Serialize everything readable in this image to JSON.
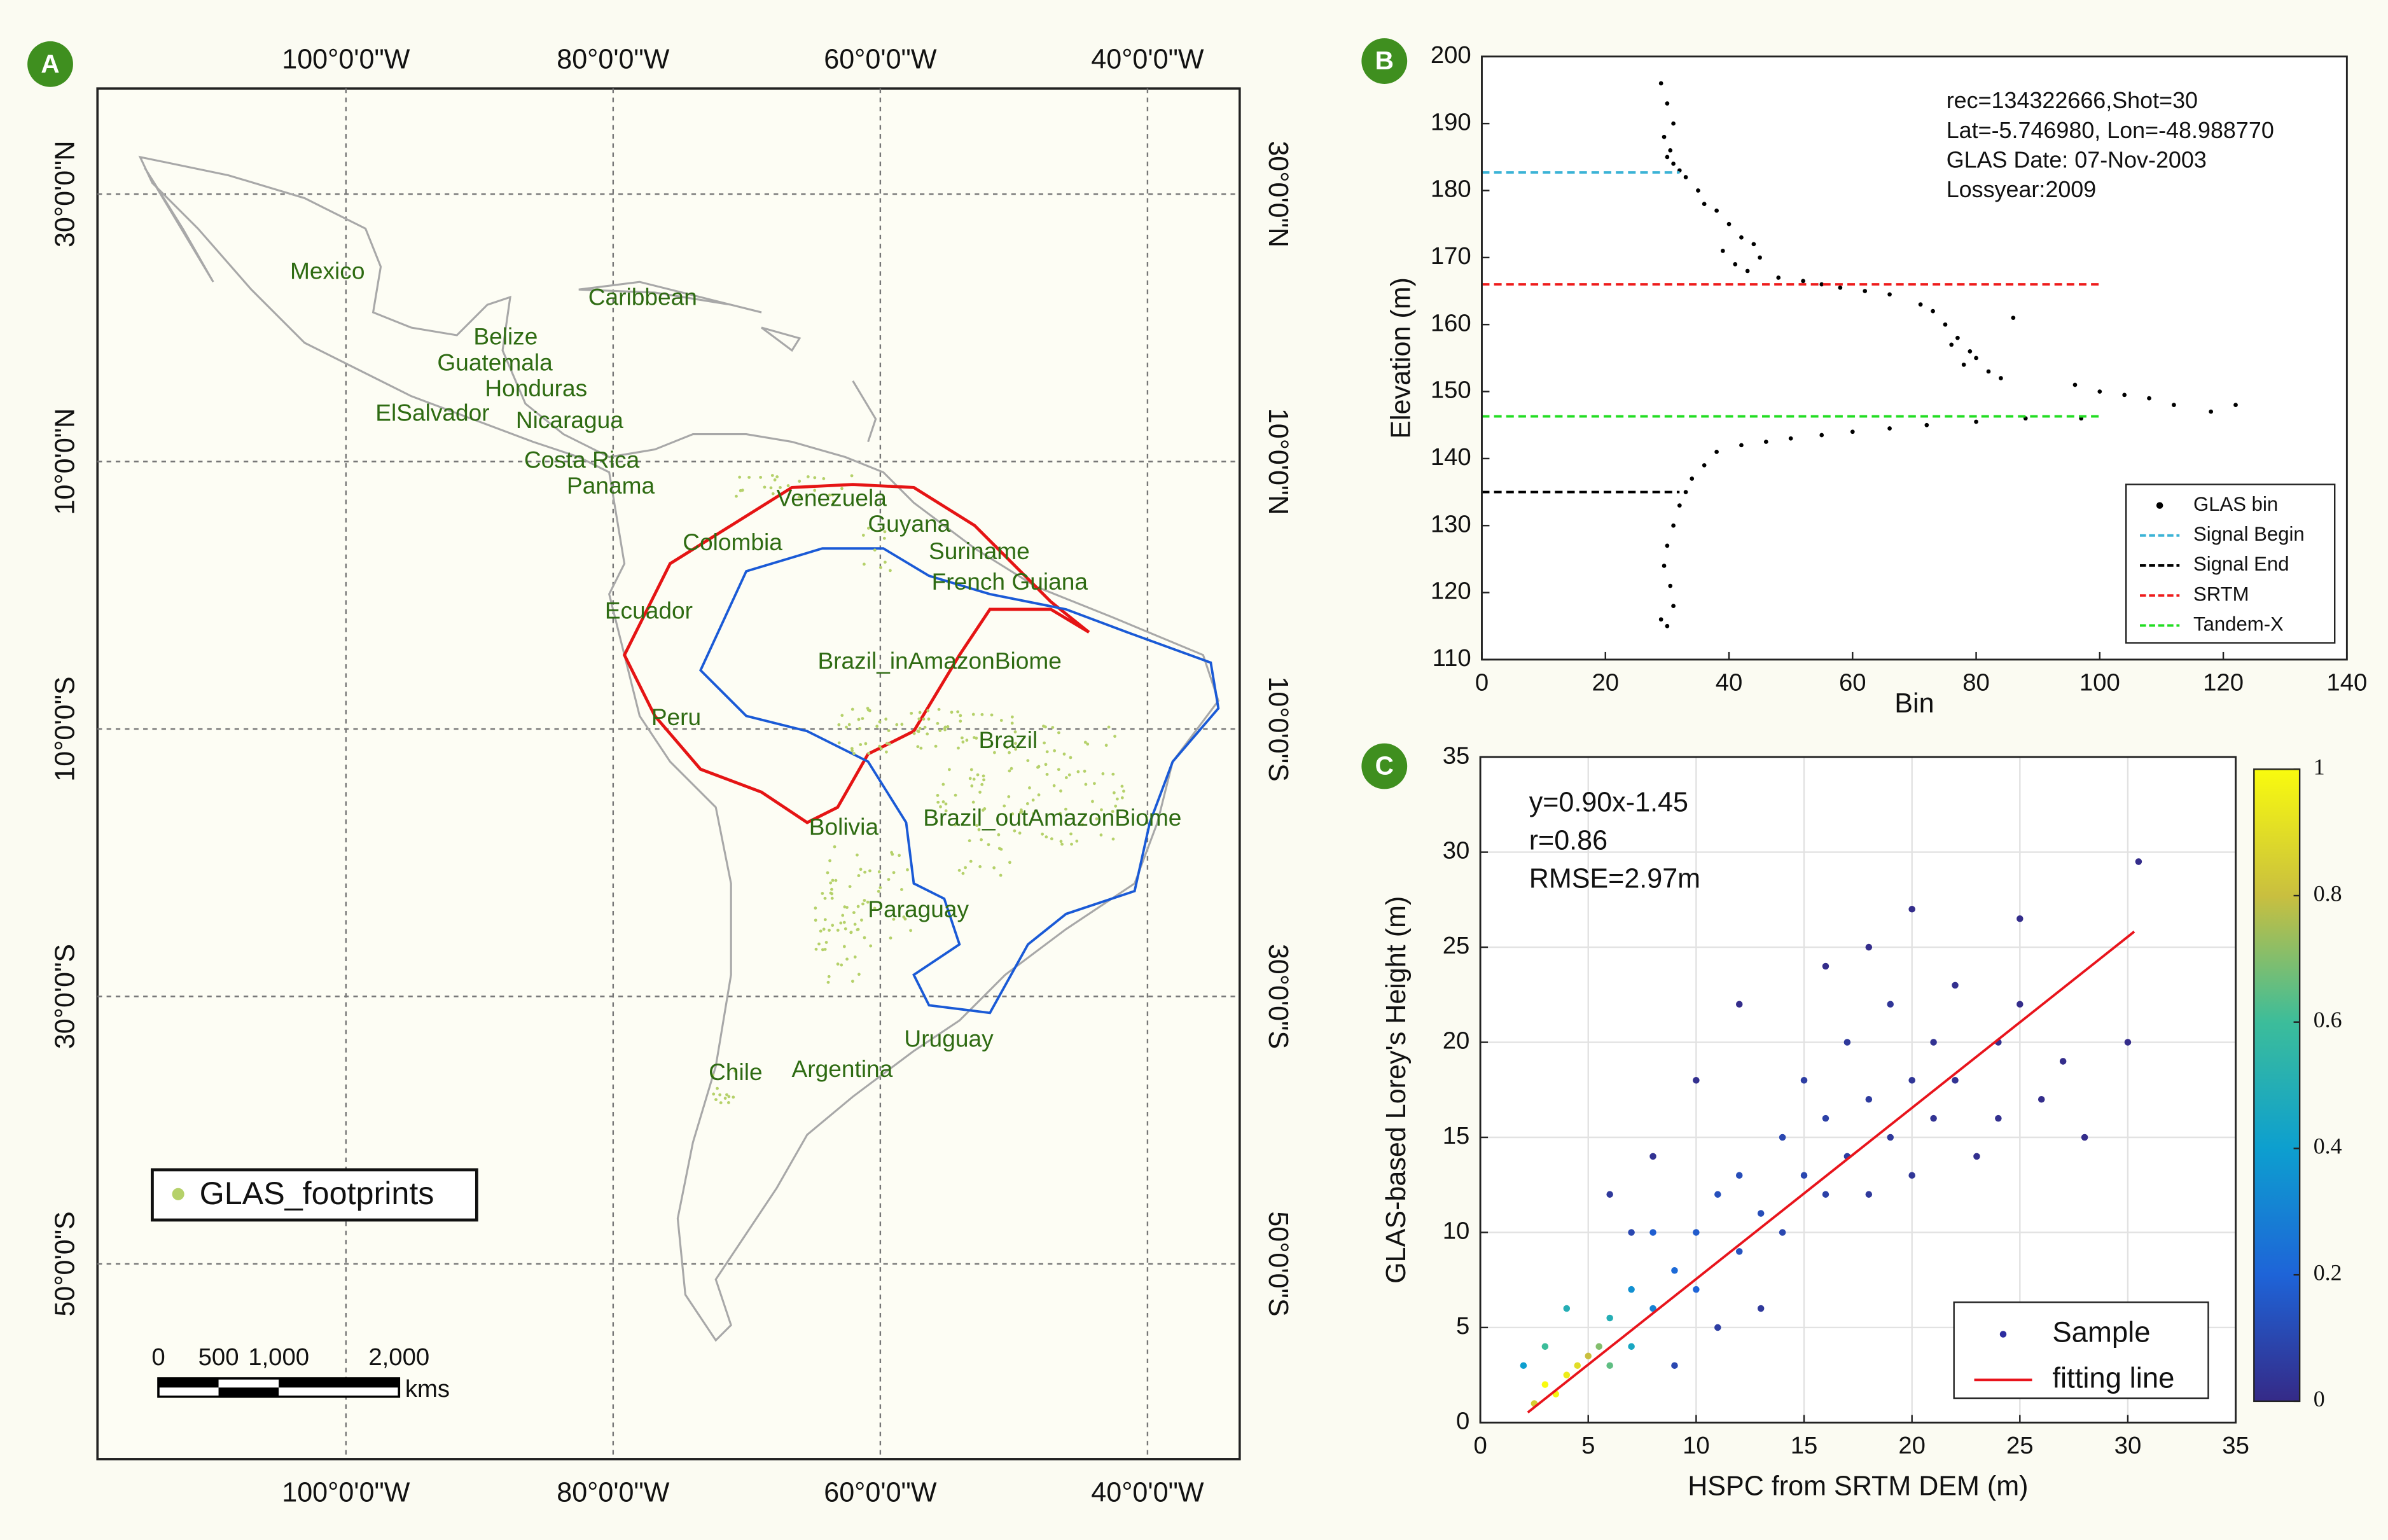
{
  "map": {
    "panel_label": "A",
    "xlim": [
      -118.6,
      -33.1
    ],
    "ylim": [
      -64.6,
      37.9
    ],
    "xticks": [
      {
        "value": -100,
        "label": "100°0'0\"W"
      },
      {
        "value": -80,
        "label": "80°0'0\"W"
      },
      {
        "value": -60,
        "label": "60°0'0\"W"
      },
      {
        "value": -40,
        "label": "40°0'0\"W"
      }
    ],
    "yticks": [
      {
        "value": 30,
        "label": "30°0'0\"N"
      },
      {
        "value": 10,
        "label": "10°0'0\"N"
      },
      {
        "value": -10,
        "label": "10°0'0\"S"
      },
      {
        "value": -30,
        "label": "30°0'0\"S"
      },
      {
        "value": -50,
        "label": "50°0'0\"S"
      }
    ],
    "labels": [
      "Mexico",
      "Caribbean",
      "Belize",
      "Guatemala",
      "Honduras",
      "ElSalvador",
      "Nicaragua",
      "Costa Rica",
      "Panama",
      "Venezuela",
      "Colombia",
      "Guyana",
      "Suriname",
      "French Guiana",
      "Ecuador",
      "Brazil_inAmazonBiome",
      "Peru",
      "Brazil",
      "Bolivia",
      "Brazil_outAmazonBiome",
      "Paraguay",
      "Uruguay",
      "Chile",
      "Argentina"
    ],
    "legend": "GLAS_footprints",
    "scale_bar": {
      "ticks": [
        {
          "value": 0,
          "label": "0"
        },
        {
          "value": 500,
          "label": "500"
        },
        {
          "value": 1000,
          "label": "1,000"
        },
        {
          "value": 2000,
          "label": "2,000"
        }
      ],
      "unit": "kms"
    }
  },
  "chart_data": [
    {
      "type": "scatter",
      "panel_label": "B",
      "annotations": [
        "rec=134322666,Shot=30",
        "Lat=-5.746980, Lon=-48.988770",
        "GLAS Date: 07-Nov-2003",
        "Lossyear:2009"
      ],
      "x_label": "Bin",
      "y_label": "Elevation (m)",
      "xlim": [
        0,
        140
      ],
      "ylim": [
        110,
        200
      ],
      "xticks": [
        0,
        20,
        40,
        60,
        80,
        100,
        120,
        140
      ],
      "yticks": [
        110,
        120,
        130,
        140,
        150,
        160,
        170,
        180,
        190,
        200
      ],
      "legend": "lower right",
      "series": [
        {
          "name": "GLAS bin",
          "color": "#000000",
          "style": "dots",
          "x": [
            29,
            30,
            31,
            29.5,
            30.5,
            31,
            32,
            30,
            33,
            35,
            36,
            38,
            40,
            42,
            44,
            39,
            41,
            45,
            43,
            48,
            52,
            55,
            58,
            62,
            66,
            71,
            73,
            75,
            77,
            79,
            80,
            82,
            84,
            86,
            76,
            78,
            96,
            100,
            104,
            108,
            112,
            118,
            122,
            97,
            88,
            80,
            72,
            66,
            60,
            55,
            50,
            46,
            42,
            38,
            36,
            34,
            33,
            32,
            31,
            30,
            29.5,
            30.5,
            31,
            29,
            30
          ],
          "y": [
            196,
            193,
            190,
            188,
            186,
            184,
            183,
            185,
            182,
            180,
            178,
            177,
            175,
            173,
            172,
            171,
            169,
            170,
            168,
            167,
            166.5,
            166,
            165.5,
            165,
            164.5,
            163,
            162,
            160,
            158,
            156,
            155,
            153,
            152,
            161,
            157,
            154,
            151,
            150,
            149.5,
            149,
            148,
            147,
            148,
            146,
            146,
            145.5,
            145,
            144.5,
            144,
            143.5,
            143,
            142.5,
            142,
            141,
            139,
            137,
            135,
            133,
            130,
            127,
            124,
            121,
            118,
            116,
            115
          ]
        },
        {
          "name": "Signal Begin",
          "color": "#3bb3d6",
          "style": "dashed",
          "x": [
            0,
            32
          ],
          "y": [
            182.7,
            182.7
          ]
        },
        {
          "name": "Signal End",
          "color": "#000000",
          "style": "dashed",
          "x": [
            0,
            32
          ],
          "y": [
            135,
            135
          ]
        },
        {
          "name": "SRTM",
          "color": "#ee1c1c",
          "style": "dashed",
          "x": [
            0,
            100
          ],
          "y": [
            166,
            166
          ]
        },
        {
          "name": "Tandem-X",
          "color": "#22dd22",
          "style": "dashed",
          "x": [
            0,
            100
          ],
          "y": [
            146.3,
            146.3
          ]
        }
      ]
    },
    {
      "type": "scatter",
      "panel_label": "C",
      "annotations": [
        "y=0.90x-1.45",
        "r=0.86",
        "RMSE=2.97m"
      ],
      "x_label": "HSPC from SRTM DEM (m)",
      "y_label": "GLAS-based Lorey's Height (m)",
      "xlim": [
        0,
        35
      ],
      "ylim": [
        0,
        35
      ],
      "xticks": [
        0,
        5,
        10,
        15,
        20,
        25,
        30,
        35
      ],
      "yticks": [
        0,
        5,
        10,
        15,
        20,
        25,
        30,
        35
      ],
      "grid": true,
      "legend": "lower right",
      "colorbar": {
        "clim": [
          0,
          1
        ],
        "ticks": [
          0,
          0.2,
          0.4,
          0.6,
          0.8,
          1
        ]
      },
      "series": [
        {
          "name": "Sample",
          "color": "#2c2ca0",
          "style": "dots",
          "x": [
            3,
            4,
            3.5,
            4.5,
            5,
            2.5,
            5.5,
            6,
            3,
            6,
            7,
            7,
            8,
            9,
            8,
            10,
            10,
            11,
            12,
            12,
            13,
            14,
            14,
            15,
            15,
            16,
            16,
            17,
            17,
            18,
            18,
            19,
            19,
            20,
            20,
            21,
            21,
            22,
            22,
            23,
            24,
            24,
            25,
            26,
            27,
            28,
            30,
            30.5,
            9,
            11,
            13,
            6,
            8,
            10,
            12,
            16,
            20,
            2,
            4,
            7,
            25,
            18
          ],
          "y": [
            2,
            2.5,
            1.5,
            3,
            3.5,
            1,
            4,
            3,
            4,
            5.5,
            4,
            7,
            6,
            8,
            10,
            7,
            10,
            12,
            9,
            13,
            11,
            15,
            10,
            13,
            18,
            12,
            16,
            14,
            20,
            17,
            12,
            15,
            22,
            18,
            13,
            20,
            16,
            23,
            18,
            14,
            20,
            16,
            22,
            17,
            19,
            15,
            20,
            29.5,
            3,
            5,
            6,
            12,
            14,
            18,
            22,
            24,
            27,
            3,
            6,
            10,
            26.5,
            25
          ],
          "density": [
            1,
            0.95,
            0.98,
            0.9,
            0.8,
            0.85,
            0.7,
            0.65,
            0.6,
            0.5,
            0.45,
            0.35,
            0.3,
            0.22,
            0.18,
            0.2,
            0.17,
            0.13,
            0.14,
            0.12,
            0.12,
            0.1,
            0.1,
            0.1,
            0.07,
            0.08,
            0.08,
            0.07,
            0.05,
            0.06,
            0.05,
            0.05,
            0.04,
            0.04,
            0.04,
            0.03,
            0.03,
            0.02,
            0.03,
            0.02,
            0.02,
            0.02,
            0.01,
            0.01,
            0.01,
            0.01,
            0.01,
            0.01,
            0.1,
            0.07,
            0.05,
            0.05,
            0.03,
            0.02,
            0.01,
            0.01,
            0.01,
            0.4,
            0.5,
            0.1,
            0.01,
            0.01
          ]
        },
        {
          "name": "fitting line",
          "color": "#e8141c",
          "style": "line",
          "x": [
            2.2,
            30.3
          ],
          "y": [
            0.53,
            25.82
          ]
        }
      ]
    }
  ]
}
